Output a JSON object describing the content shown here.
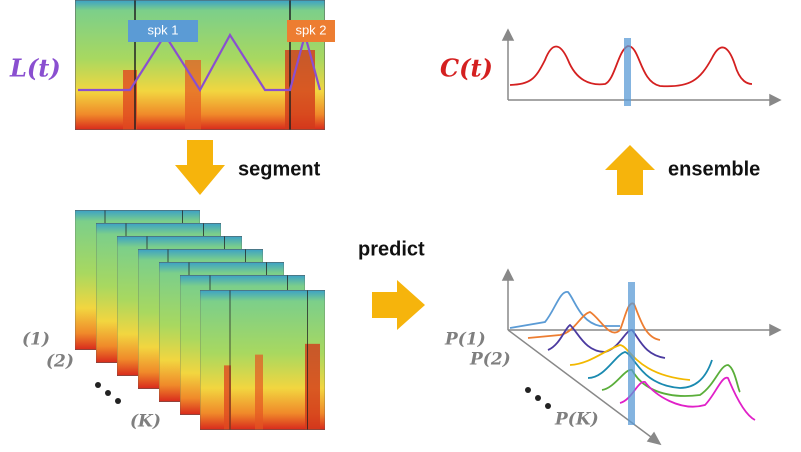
{
  "left_label": "L(t)",
  "speaker_tags": [
    "spk 1",
    "spk 2"
  ],
  "segment_label": "segment",
  "predict_label": "predict",
  "ensemble_label": "ensemble",
  "combined_label": "C(t)",
  "segment_indices": [
    "(1)",
    "(2)",
    "(K)"
  ],
  "prediction_labels": [
    "P(1)",
    "P(2)",
    "P(K)"
  ]
}
